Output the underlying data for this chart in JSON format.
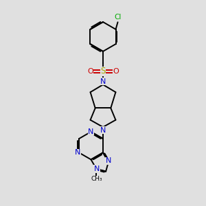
{
  "background_color": "#e0e0e0",
  "bond_color": "#000000",
  "nitrogen_color": "#0000cc",
  "chlorine_color": "#00aa00",
  "sulfur_color": "#aaaa00",
  "oxygen_color": "#cc0000",
  "line_width": 1.4,
  "figsize": [
    3.0,
    3.0
  ],
  "dpi": 100,
  "xlim": [
    2.0,
    8.0
  ],
  "ylim": [
    0.5,
    10.5
  ]
}
